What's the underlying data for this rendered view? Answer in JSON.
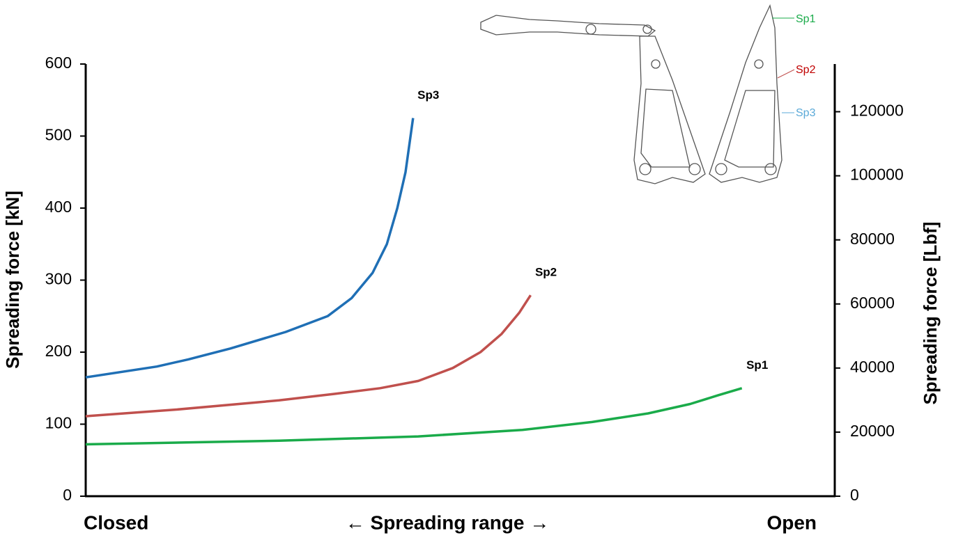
{
  "chart_data": {
    "type": "line",
    "ylabel": "Spreading force [kN]",
    "y2label": "Spreading force [Lbf]",
    "x_labels": [
      "Closed",
      "← Spreading range →",
      "Open"
    ],
    "xlim": [
      0,
      100
    ],
    "ylim": [
      0,
      600
    ],
    "yticks": [
      0,
      100,
      200,
      300,
      400,
      500,
      600
    ],
    "y2lim": [
      0,
      134885
    ],
    "y2ticks": [
      0,
      20000,
      40000,
      60000,
      80000,
      100000,
      120000
    ],
    "series": [
      {
        "name": "Sp1",
        "color": "#1aab4a",
        "x": [
          0,
          25.8,
          44.4,
          58.3,
          67.6,
          75.1,
          80.7,
          84.4,
          87.6
        ],
        "values": [
          72,
          77,
          83,
          92,
          103,
          115,
          128,
          140,
          150
        ]
      },
      {
        "name": "Sp2",
        "color": "#c0504d",
        "x": [
          0,
          11.8,
          25.8,
          33.2,
          39.3,
          44.4,
          49,
          52.7,
          55.5,
          57.9,
          59.4
        ],
        "values": [
          111,
          120,
          133,
          142,
          150,
          160,
          178,
          200,
          225,
          255,
          279
        ]
      },
      {
        "name": "Sp3",
        "color": "#1f6fb5",
        "x": [
          0,
          9.5,
          13.7,
          19.3,
          26.7,
          32.3,
          35.5,
          38.3,
          40.2,
          41.6,
          42.7,
          43.7
        ],
        "values": [
          165,
          180,
          190,
          205,
          228,
          250,
          275,
          310,
          350,
          400,
          450,
          525
        ]
      }
    ]
  }
}
